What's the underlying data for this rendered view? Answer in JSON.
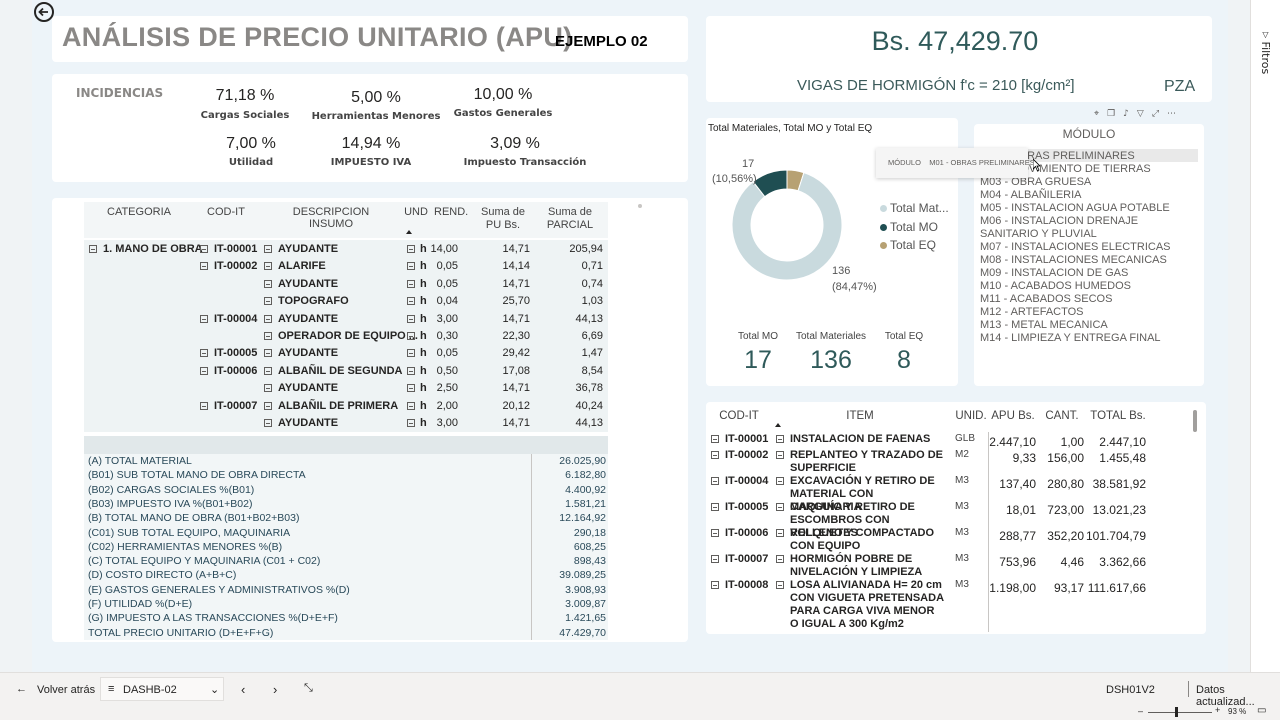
{
  "header": {
    "title": "ANÁLISIS DE PRECIO UNITARIO (APU)",
    "subtitle": "EJEMPLO 02",
    "price": "Bs. 47,429.70",
    "description": "VIGAS DE HORMIGÓN f'c = 210 [kg/cm²]",
    "unit": "PZA"
  },
  "incidencias": {
    "title": "INCIDENCIAS",
    "items": [
      {
        "value": "71,18 %",
        "label": "Cargas Sociales"
      },
      {
        "value": "5,00 %",
        "label": "Herramientas Menores"
      },
      {
        "value": "10,00 %",
        "label": "Gastos Generales"
      },
      {
        "value": "7,00 %",
        "label": "Utilidad"
      },
      {
        "value": "14,94 %",
        "label": "IMPUESTO IVA"
      },
      {
        "value": "3,09 %",
        "label": "Impuesto Transacción"
      }
    ]
  },
  "matrix": {
    "columns": [
      "CATEGORIA",
      "COD-IT",
      "DESCRIPCION INSUMO",
      "UND",
      "REND.",
      "Suma de PU Bs.",
      "Suma de PARCIAL"
    ],
    "category": "1. MANO DE OBRA",
    "rows": [
      {
        "cod": "IT-00001",
        "desc": "AYUDANTE",
        "und": "h",
        "rend": "14,00",
        "pu": "14,71",
        "parcial": "205,94"
      },
      {
        "cod": "IT-00002",
        "desc": "ALARIFE",
        "und": "h",
        "rend": "0,05",
        "pu": "14,14",
        "parcial": "0,71"
      },
      {
        "cod": "",
        "desc": "AYUDANTE",
        "und": "h",
        "rend": "0,05",
        "pu": "14,71",
        "parcial": "0,74"
      },
      {
        "cod": "",
        "desc": "TOPOGRAFO",
        "und": "h",
        "rend": "0,04",
        "pu": "25,70",
        "parcial": "1,03"
      },
      {
        "cod": "IT-00004",
        "desc": "AYUDANTE",
        "und": "h",
        "rend": "3,00",
        "pu": "14,71",
        "parcial": "44,13"
      },
      {
        "cod": "",
        "desc": "OPERADOR DE EQUIPO ...",
        "und": "h",
        "rend": "0,30",
        "pu": "22,30",
        "parcial": "6,69"
      },
      {
        "cod": "IT-00005",
        "desc": "AYUDANTE",
        "und": "h",
        "rend": "0,05",
        "pu": "29,42",
        "parcial": "1,47"
      },
      {
        "cod": "IT-00006",
        "desc": "ALBAÑIL DE SEGUNDA",
        "und": "h",
        "rend": "0,50",
        "pu": "17,08",
        "parcial": "8,54"
      },
      {
        "cod": "",
        "desc": "AYUDANTE",
        "und": "h",
        "rend": "2,50",
        "pu": "14,71",
        "parcial": "36,78"
      },
      {
        "cod": "IT-00007",
        "desc": "ALBAÑIL DE PRIMERA",
        "und": "h",
        "rend": "2,00",
        "pu": "20,12",
        "parcial": "40,24"
      },
      {
        "cod": "",
        "desc": "AYUDANTE",
        "und": "h",
        "rend": "3,00",
        "pu": "14,71",
        "parcial": "44,13"
      }
    ]
  },
  "summary": [
    {
      "label": "(A) TOTAL MATERIAL",
      "value": "26.025,90"
    },
    {
      "label": "(B01) SUB TOTAL MANO DE OBRA DIRECTA",
      "value": "6.182,80"
    },
    {
      "label": "(B02) CARGAS SOCIALES %(B01)",
      "value": "4.400,92"
    },
    {
      "label": "(B03) IMPUESTO IVA %(B01+B02)",
      "value": "1.581,21"
    },
    {
      "label": "(B) TOTAL MANO DE OBRA (B01+B02+B03)",
      "value": "12.164,92"
    },
    {
      "label": "(C01) SUB TOTAL EQUIPO, MAQUINARIA",
      "value": "290,18"
    },
    {
      "label": "(C02) HERRAMIENTAS MENORES %(B)",
      "value": "608,25"
    },
    {
      "label": "(C) TOTAL EQUIPO Y MAQUINARIA (C01 + C02)",
      "value": "898,43"
    },
    {
      "label": "(D) COSTO DIRECTO (A+B+C)",
      "value": "39.089,25"
    },
    {
      "label": "(E) GASTOS GENERALES Y ADMINISTRATIVOS %(D)",
      "value": "3.908,93"
    },
    {
      "label": "(F) UTILIDAD %(D+E)",
      "value": "3.009,87"
    },
    {
      "label": "(G) IMPUESTO A LAS TRANSACCIONES %(D+E+F)",
      "value": "1.421,65"
    },
    {
      "label": "TOTAL PRECIO UNITARIO (D+E+F+G)",
      "value": "47.429,70"
    }
  ],
  "donut": {
    "title": "Total Materiales, Total MO y Total EQ",
    "label_mo": "17",
    "label_mo_pct": "(10,56%)",
    "label_mat": "136",
    "label_mat_pct": "(84,47%)",
    "legend": [
      "Total Mat...",
      "Total MO",
      "Total EQ"
    ]
  },
  "chart_data": {
    "type": "pie",
    "title": "Total Materiales, Total MO y Total EQ",
    "categories": [
      "Total Materiales",
      "Total MO",
      "Total EQ"
    ],
    "values": [
      136,
      17,
      8
    ],
    "colors": [
      "#c9dade",
      "#1f4e52",
      "#b7a173"
    ]
  },
  "cards": [
    {
      "label": "Total MO",
      "value": "17"
    },
    {
      "label": "Total Materiales",
      "value": "136"
    },
    {
      "label": "Total EQ",
      "value": "8"
    }
  ],
  "modulo": {
    "title": "MÓDULO",
    "tooltip_key": "MÓDULO",
    "tooltip_val": "M01 - OBRAS PRELIMINARES",
    "items": [
      "M01 - OBRAS PRELIMINARES",
      "M02 - MOVIMIENTO DE TIERRAS",
      "M03 - OBRA GRUESA",
      "M04 - ALBAÑILERIA",
      "M05 - INSTALACION AGUA POTABLE",
      "M06 - INSTALACION DRENAJE SANITARIO Y PLUVIAL",
      "M07 - INSTALACIONES ELECTRICAS",
      "M08 - INSTALACIONES MECANICAS",
      "M09 - INSTALACION DE GAS",
      "M10 - ACABADOS HUMEDOS",
      "M11 - ACABADOS SECOS",
      "M12 - ARTEFACTOS",
      "M13 - METAL MECANICA",
      "M14 - LIMPIEZA Y ENTREGA FINAL"
    ]
  },
  "items_table": {
    "columns": [
      "COD-IT",
      "ITEM",
      "UNID.",
      "APU Bs.",
      "CANT.",
      "TOTAL Bs."
    ],
    "rows": [
      {
        "cod": "IT-00001",
        "item": "INSTALACION DE FAENAS",
        "unid": "GLB",
        "apu": "2.447,10",
        "cant": "1,00",
        "total": "2.447,10"
      },
      {
        "cod": "IT-00002",
        "item": "REPLANTEO Y TRAZADO DE SUPERFICIE",
        "unid": "M2",
        "apu": "9,33",
        "cant": "156,00",
        "total": "1.455,48"
      },
      {
        "cod": "IT-00004",
        "item": "EXCAVACIÓN Y RETIRO DE MATERIAL CON MAQUINARIA",
        "unid": "M3",
        "apu": "137,40",
        "cant": "280,80",
        "total": "38.581,92"
      },
      {
        "cod": "IT-00005",
        "item": "CARGUÍO Y RETIRO DE ESCOMBROS CON VOLQUETES",
        "unid": "M3",
        "apu": "18,01",
        "cant": "723,00",
        "total": "13.021,23"
      },
      {
        "cod": "IT-00006",
        "item": "RELLENO Y COMPACTADO CON EQUIPO",
        "unid": "M3",
        "apu": "288,77",
        "cant": "352,20",
        "total": "101.704,79"
      },
      {
        "cod": "IT-00007",
        "item": "HORMIGÓN POBRE DE NIVELACIÓN Y LIMPIEZA",
        "unid": "M3",
        "apu": "753,96",
        "cant": "4,46",
        "total": "3.362,66"
      },
      {
        "cod": "IT-00008",
        "item": "LOSA ALIVIANADA H= 20 cm CON VIGUETA PRETENSADA PARA CARGA VIVA MENOR O IGUAL A 300 Kg/m2",
        "unid": "M3",
        "apu": "1.198,00",
        "cant": "93,17",
        "total": "111.617,66"
      }
    ]
  },
  "taskbar": {
    "back": "Volver atrás",
    "page": "DASHB-02",
    "code": "DSH01V2",
    "status": "Datos actualizad...",
    "zoom": "93 %"
  },
  "filters_pane": {
    "label": "Filtros"
  }
}
